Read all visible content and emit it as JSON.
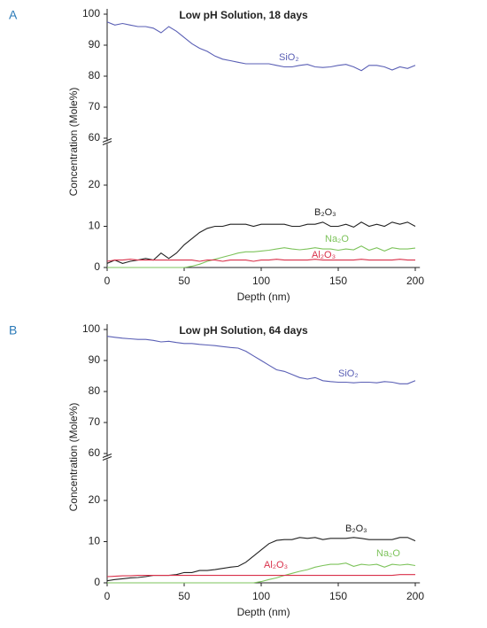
{
  "chart_data": [
    {
      "type": "line",
      "panel_label": "A",
      "title": "Low pH Solution, 18 days",
      "x_label": "Depth (nm)",
      "y_label": "Concentration (Mole%)",
      "x": [
        0,
        5,
        10,
        15,
        20,
        25,
        30,
        35,
        40,
        45,
        50,
        55,
        60,
        65,
        70,
        75,
        80,
        85,
        90,
        95,
        100,
        105,
        110,
        115,
        120,
        125,
        130,
        135,
        140,
        145,
        150,
        155,
        160,
        165,
        170,
        175,
        180,
        185,
        190,
        195,
        200
      ],
      "xlim": [
        0,
        203
      ],
      "xticks": [
        0,
        50,
        100,
        150,
        200
      ],
      "ylim": [
        0,
        100
      ],
      "ybreak": [
        30,
        59
      ],
      "yticks": [
        0,
        10,
        20,
        60,
        70,
        80,
        90,
        100
      ],
      "series": [
        {
          "name": "SiO₂",
          "color": "#5a5fb5",
          "values": [
            97.5,
            96.5,
            97,
            96.5,
            96,
            96,
            95.5,
            94,
            96,
            94.5,
            92.5,
            90.5,
            89,
            88,
            86.5,
            85.5,
            85,
            84.5,
            84,
            84,
            84,
            84,
            83.5,
            83,
            83,
            83.5,
            83.8,
            83,
            82.8,
            83,
            83.5,
            83.8,
            83,
            81.8,
            83.5,
            83.5,
            83,
            82,
            83,
            82.5,
            83.5
          ]
        },
        {
          "name": "B₂O₃",
          "color": "#222222",
          "values": [
            1,
            1.8,
            1,
            1.5,
            1.8,
            2.2,
            1.8,
            3.5,
            2.2,
            3.5,
            5.5,
            7,
            8.5,
            9.5,
            10,
            10,
            10.5,
            10.5,
            10.5,
            10,
            10.5,
            10.5,
            10.5,
            10.5,
            10,
            10,
            10.5,
            10.5,
            11,
            10,
            10,
            10.5,
            9.8,
            11,
            10,
            10.5,
            10,
            11,
            10.5,
            11,
            10
          ]
        },
        {
          "name": "Na₂O",
          "color": "#7dc35b",
          "values": [
            0,
            0,
            0,
            0,
            0,
            0,
            0,
            0,
            0,
            0,
            0,
            0.3,
            0.8,
            1.5,
            2,
            2.5,
            3,
            3.5,
            3.8,
            3.8,
            4,
            4.2,
            4.5,
            4.8,
            4.5,
            4.3,
            4.5,
            4.8,
            4.5,
            4.5,
            4.2,
            4.5,
            4.3,
            5.2,
            4.2,
            4.8,
            4,
            4.8,
            4.5,
            4.5,
            4.7
          ]
        },
        {
          "name": "Al₂O₃",
          "color": "#d9304a",
          "values": [
            1.5,
            1.8,
            1.8,
            2,
            1.8,
            1.8,
            1.8,
            1.8,
            1.8,
            1.8,
            1.8,
            1.8,
            1.5,
            1.8,
            1.8,
            1.5,
            1.8,
            1.8,
            1.8,
            1.5,
            1.8,
            1.8,
            2,
            1.8,
            1.8,
            1.8,
            1.8,
            2,
            1.8,
            1.8,
            1.8,
            1.8,
            1.8,
            2,
            1.8,
            1.8,
            1.8,
            1.8,
            2,
            1.8,
            1.8
          ]
        }
      ]
    },
    {
      "type": "line",
      "panel_label": "B",
      "title": "Low pH Solution, 64 days",
      "x_label": "Depth (nm)",
      "y_label": "Concentration (Mole%)",
      "x": [
        0,
        5,
        10,
        15,
        20,
        25,
        30,
        35,
        40,
        45,
        50,
        55,
        60,
        65,
        70,
        75,
        80,
        85,
        90,
        95,
        100,
        105,
        110,
        115,
        120,
        125,
        130,
        135,
        140,
        145,
        150,
        155,
        160,
        165,
        170,
        175,
        180,
        185,
        190,
        195,
        200
      ],
      "xlim": [
        0,
        203
      ],
      "xticks": [
        0,
        50,
        100,
        150,
        200
      ],
      "ylim": [
        0,
        100
      ],
      "ybreak": [
        30,
        59
      ],
      "yticks": [
        0,
        10,
        20,
        60,
        70,
        80,
        90,
        100
      ],
      "series": [
        {
          "name": "SiO₂",
          "color": "#5a5fb5",
          "values": [
            97.8,
            97.5,
            97.2,
            97,
            96.8,
            96.8,
            96.5,
            96,
            96.2,
            95.8,
            95.5,
            95.5,
            95.2,
            95,
            94.8,
            94.5,
            94.2,
            94,
            93,
            91.5,
            90,
            88.5,
            87,
            86.5,
            85.5,
            84.5,
            84,
            84.5,
            83.5,
            83.2,
            83,
            83,
            82.8,
            83,
            83,
            82.8,
            83.2,
            83,
            82.5,
            82.5,
            83.5
          ]
        },
        {
          "name": "B₂O₃",
          "color": "#222222",
          "values": [
            0.5,
            0.8,
            1,
            1.2,
            1.3,
            1.5,
            1.8,
            1.8,
            1.8,
            2,
            2.5,
            2.5,
            3,
            3,
            3.2,
            3.5,
            3.8,
            4,
            5,
            6.5,
            8,
            9.5,
            10.3,
            10.5,
            10.5,
            11,
            10.8,
            11,
            10.5,
            10.8,
            10.8,
            10.8,
            11,
            10.8,
            10.5,
            10.5,
            10.5,
            10.5,
            11,
            11,
            10.2
          ]
        },
        {
          "name": "Na₂O",
          "color": "#7dc35b",
          "values": [
            0,
            0,
            0,
            0,
            0,
            0,
            0,
            0,
            0,
            0,
            0,
            0,
            0,
            0,
            0,
            0,
            0,
            0,
            0,
            0,
            0.3,
            0.8,
            1.2,
            1.8,
            2.3,
            2.8,
            3.2,
            3.8,
            4.2,
            4.5,
            4.5,
            4.8,
            4,
            4.5,
            4.3,
            4.5,
            3.8,
            4.5,
            4.3,
            4.5,
            4.2
          ]
        },
        {
          "name": "Al₂O₃",
          "color": "#d9304a",
          "values": [
            1.5,
            1.6,
            1.7,
            1.7,
            1.8,
            1.8,
            1.8,
            1.8,
            1.8,
            1.8,
            1.8,
            1.8,
            1.8,
            1.8,
            1.8,
            1.8,
            1.8,
            1.8,
            1.8,
            1.8,
            1.8,
            1.8,
            1.8,
            1.8,
            1.8,
            1.8,
            1.8,
            1.8,
            1.8,
            1.8,
            1.8,
            1.8,
            1.8,
            1.8,
            1.8,
            1.8,
            1.8,
            1.8,
            2,
            2,
            2
          ]
        }
      ]
    }
  ]
}
